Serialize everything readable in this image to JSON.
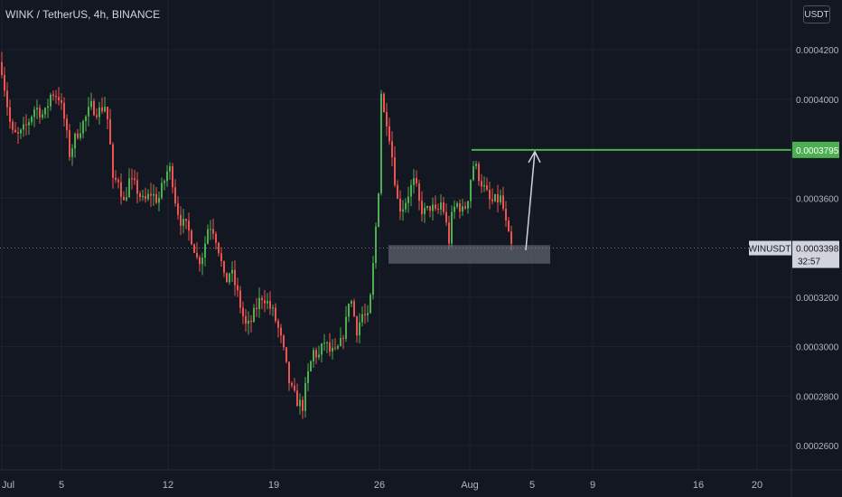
{
  "header": {
    "title": "WINK / TetherUS, 4h, BINANCE",
    "currency_button": "USDT"
  },
  "colors": {
    "background": "#131722",
    "bull": "#26a69a",
    "bull_candle": "#4caf50",
    "bear_candle": "#ef5350",
    "target_line": "#4caf50",
    "zone": "#787b86",
    "arrow": "#d1d4dc"
  },
  "price_axis": {
    "labels": [
      "0.0004200",
      "0.0004000",
      "0.0003600",
      "0.0003200",
      "0.0003000",
      "0.0002800",
      "0.0002600"
    ],
    "target_label": "0.0003795",
    "current_symbol": "WINUSDT",
    "current_price": "0.0003398",
    "countdown": "32:57"
  },
  "time_axis": {
    "labels": [
      "Jul",
      "5",
      "12",
      "19",
      "26",
      "Aug",
      "5",
      "9",
      "16",
      "20"
    ]
  },
  "chart_data": {
    "type": "candlestick",
    "symbol": "WINK / TetherUS",
    "interval": "4h",
    "exchange": "BINANCE",
    "ylim": [
      0.000255,
      0.000436
    ],
    "y_ticks": [
      0.00042,
      0.0004,
      0.00036,
      0.00032,
      0.0003,
      0.00028,
      0.00026
    ],
    "x_ticks": [
      "Jul",
      "5",
      "12",
      "19",
      "26",
      "Aug",
      "5",
      "9",
      "16",
      "20"
    ],
    "target_price": 0.0003795,
    "current_price": 0.0003398,
    "support_zone": [
      0.0003335,
      0.000341
    ],
    "path": [
      [
        0,
        0.000415
      ],
      [
        6,
        0.0004
      ],
      [
        12,
        0.000386
      ],
      [
        20,
        0.000385
      ],
      [
        28,
        0.000389
      ],
      [
        38,
        0.000397
      ],
      [
        48,
        0.000393
      ],
      [
        56,
        0.000403
      ],
      [
        64,
        0.000401
      ],
      [
        70,
        0.000392
      ],
      [
        76,
        0.000378
      ],
      [
        84,
        0.000386
      ],
      [
        92,
        0.000391
      ],
      [
        100,
        0.000397
      ],
      [
        108,
        0.000395
      ],
      [
        116,
        0.000398
      ],
      [
        120,
        0.000386
      ],
      [
        124,
        0.000366
      ],
      [
        130,
        0.000368
      ],
      [
        136,
        0.000358
      ],
      [
        142,
        0.000367
      ],
      [
        150,
        0.000364
      ],
      [
        158,
        0.000358
      ],
      [
        166,
        0.000362
      ],
      [
        174,
        0.000359
      ],
      [
        180,
        0.000366
      ],
      [
        186,
        0.000373
      ],
      [
        190,
        0.000367
      ],
      [
        194,
        0.000357
      ],
      [
        200,
        0.00035
      ],
      [
        206,
        0.000348
      ],
      [
        212,
        0.000343
      ],
      [
        218,
        0.000334
      ],
      [
        224,
        0.000338
      ],
      [
        230,
        0.00035
      ],
      [
        236,
        0.000347
      ],
      [
        242,
        0.000338
      ],
      [
        248,
        0.000325
      ],
      [
        254,
        0.000331
      ],
      [
        260,
        0.000324
      ],
      [
        266,
        0.000315
      ],
      [
        272,
        0.000307
      ],
      [
        278,
        0.000311
      ],
      [
        284,
        0.000317
      ],
      [
        290,
        0.000321
      ],
      [
        296,
        0.000317
      ],
      [
        302,
        0.000313
      ],
      [
        308,
        0.000306
      ],
      [
        314,
        0.000296
      ],
      [
        318,
        0.000287
      ],
      [
        322,
        0.000282
      ],
      [
        326,
        0.000279
      ],
      [
        330,
        0.000277
      ],
      [
        334,
        0.000276
      ],
      [
        338,
        0.000285
      ],
      [
        342,
        0.000292
      ],
      [
        346,
        0.000298
      ],
      [
        352,
        0.000296
      ],
      [
        358,
        0.000302
      ],
      [
        364,
        0.000298
      ],
      [
        370,
        0.000297
      ],
      [
        376,
        0.000301
      ],
      [
        382,
        0.00031
      ],
      [
        386,
        0.000322
      ],
      [
        390,
        0.000314
      ],
      [
        394,
        0.000307
      ],
      [
        400,
        0.000313
      ],
      [
        406,
        0.000311
      ],
      [
        410,
        0.000322
      ],
      [
        414,
        0.000343
      ],
      [
        418,
        0.000364
      ],
      [
        421,
        0.000403
      ],
      [
        424,
        0.000394
      ],
      [
        428,
        0.000391
      ],
      [
        432,
        0.00038
      ],
      [
        436,
        0.000368
      ],
      [
        440,
        0.000356
      ],
      [
        446,
        0.000357
      ],
      [
        452,
        0.000363
      ],
      [
        458,
        0.000367
      ],
      [
        464,
        0.000356
      ],
      [
        470,
        0.000354
      ],
      [
        476,
        0.000357
      ],
      [
        482,
        0.000353
      ],
      [
        488,
        0.000359
      ],
      [
        492,
        0.000351
      ],
      [
        496,
        0.000343
      ],
      [
        500,
        0.000355
      ],
      [
        506,
        0.000358
      ],
      [
        512,
        0.000354
      ],
      [
        518,
        0.000362
      ],
      [
        522,
        0.000374
      ],
      [
        526,
        0.000372
      ],
      [
        530,
        0.000368
      ],
      [
        536,
        0.000363
      ],
      [
        542,
        0.000358
      ],
      [
        548,
        0.000359
      ],
      [
        554,
        0.00036
      ],
      [
        558,
        0.000351
      ],
      [
        562,
        0.000344
      ],
      [
        566,
        0.000339
      ]
    ]
  }
}
